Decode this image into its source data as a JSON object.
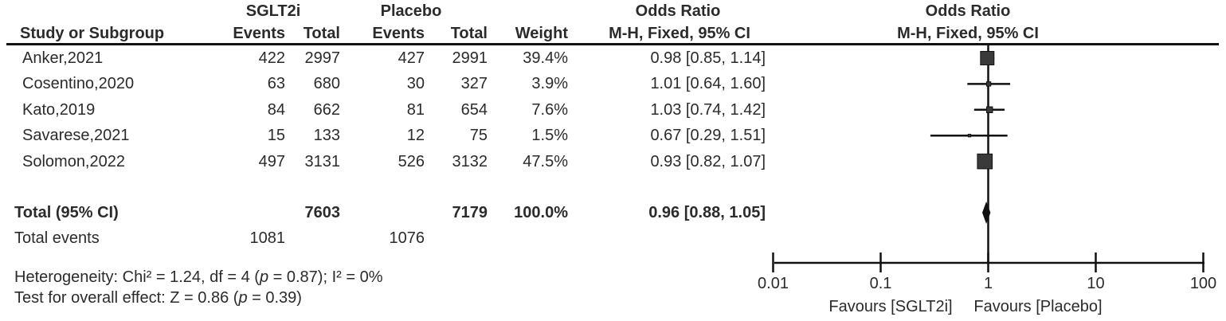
{
  "text_color": "#2b2b2b",
  "header": {
    "group_sglt2i": "SGLT2i",
    "group_placebo": "Placebo",
    "odds_ratio_left": "Odds Ratio",
    "odds_ratio_right": "Odds Ratio",
    "col_study": "Study or Subgroup",
    "col_events_1": "Events",
    "col_total_1": "Total",
    "col_events_2": "Events",
    "col_total_2": "Total",
    "col_weight": "Weight",
    "col_mh_ci_left": "M-H, Fixed, 95% CI",
    "col_mh_ci_right": "M-H, Fixed, 95% CI"
  },
  "rows": [
    {
      "study": "Anker,2021",
      "events1": "422",
      "total1": "2997",
      "events2": "427",
      "total2": "2991",
      "weight": "39.4%",
      "or_ci": "0.98 [0.85, 1.14]"
    },
    {
      "study": "Cosentino,2020",
      "events1": "63",
      "total1": "680",
      "events2": "30",
      "total2": "327",
      "weight": "3.9%",
      "or_ci": "1.01 [0.64, 1.60]"
    },
    {
      "study": "Kato,2019",
      "events1": "84",
      "total1": "662",
      "events2": "81",
      "total2": "654",
      "weight": "7.6%",
      "or_ci": "1.03 [0.74, 1.42]"
    },
    {
      "study": "Savarese,2021",
      "events1": "15",
      "total1": "133",
      "events2": "12",
      "total2": "75",
      "weight": "1.5%",
      "or_ci": "0.67 [0.29, 1.51]"
    },
    {
      "study": "Solomon,2022",
      "events1": "497",
      "total1": "3131",
      "events2": "526",
      "total2": "3132",
      "weight": "47.5%",
      "or_ci": "0.93 [0.82, 1.07]"
    }
  ],
  "total_row": {
    "label": "Total (95% CI)",
    "total1": "7603",
    "total2": "7179",
    "weight": "100.0%",
    "or_ci": "0.96 [0.88, 1.05]"
  },
  "total_events_row": {
    "label": "Total events",
    "events1": "1081",
    "events2": "1076"
  },
  "footer": {
    "heterogeneity": [
      {
        "text": "Heterogeneity: Chi² = 1.24, df = 4 ("
      },
      {
        "text": "p",
        "italic": true
      },
      {
        "text": " = 0.87); I² = 0%"
      }
    ],
    "overall_effect": [
      {
        "text": "Test for overall effect: Z = 0.86 ("
      },
      {
        "text": "p",
        "italic": true
      },
      {
        "text": " = 0.39)"
      }
    ]
  },
  "chart_data": {
    "type": "forest",
    "effect_measure": "Odds Ratio, M-H, Fixed, 95% CI",
    "x_scale": "log10",
    "axis_ticks": [
      0.01,
      0.1,
      1,
      10,
      100
    ],
    "axis_tick_labels": [
      "0.01",
      "0.1",
      "1",
      "10",
      "100"
    ],
    "xlim": [
      0.01,
      100
    ],
    "null_line": 1,
    "favours_left": "Favours [SGLT2i]",
    "favours_right": "Favours [Placebo]",
    "studies": [
      {
        "name": "Anker,2021",
        "or": 0.98,
        "ci_low": 0.85,
        "ci_high": 1.14,
        "weight_pct": 39.4
      },
      {
        "name": "Cosentino,2020",
        "or": 1.01,
        "ci_low": 0.64,
        "ci_high": 1.6,
        "weight_pct": 3.9
      },
      {
        "name": "Kato,2019",
        "or": 1.03,
        "ci_low": 0.74,
        "ci_high": 1.42,
        "weight_pct": 7.6
      },
      {
        "name": "Savarese,2021",
        "or": 0.67,
        "ci_low": 0.29,
        "ci_high": 1.51,
        "weight_pct": 1.5
      },
      {
        "name": "Solomon,2022",
        "or": 0.93,
        "ci_low": 0.82,
        "ci_high": 1.07,
        "weight_pct": 47.5
      }
    ],
    "total": {
      "name": "Total (95% CI)",
      "or": 0.96,
      "ci_low": 0.88,
      "ci_high": 1.05,
      "weight_pct": 100.0
    },
    "marker_color": "#3a3a3a",
    "line_color": "#111111"
  }
}
